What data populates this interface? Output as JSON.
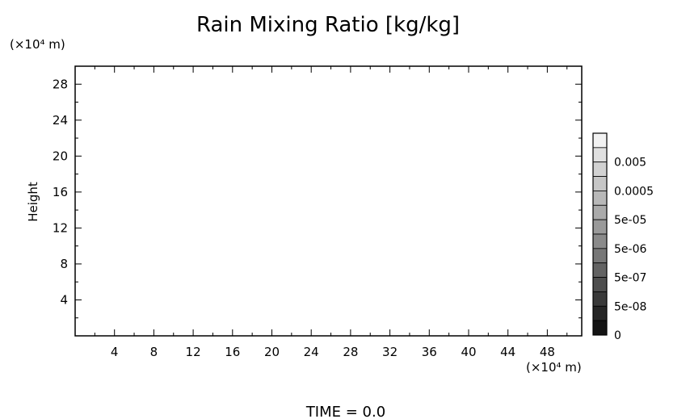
{
  "chart_data": {
    "type": "heatmap",
    "title": "Rain Mixing Ratio [kg/kg]",
    "ylabel": "Height",
    "x_unit": "(×10⁴ m)",
    "y_unit": "(×10⁴ m)",
    "xlim": [
      0,
      51.5
    ],
    "ylim": [
      0,
      30
    ],
    "x_ticks": [
      4,
      8,
      12,
      16,
      20,
      24,
      28,
      32,
      36,
      40,
      44,
      48
    ],
    "y_ticks": [
      4,
      8,
      12,
      16,
      20,
      24,
      28
    ],
    "field_values": "none shown (field empty at this time)",
    "colorbar": {
      "labels": [
        "0.005",
        "0.0005",
        "5e-05",
        "5e-06",
        "5e-07",
        "5e-08",
        "0"
      ],
      "colors": [
        "#f2f2f2",
        "#e0e0e0",
        "#d2d2d2",
        "#c6c6c6",
        "#b8b8b8",
        "#aaaaaa",
        "#9a9a9a",
        "#8a8a8a",
        "#777777",
        "#636363",
        "#4e4e4e",
        "#3a3a3a",
        "#262626",
        "#141414"
      ]
    },
    "footer": "TIME = 0.0"
  }
}
